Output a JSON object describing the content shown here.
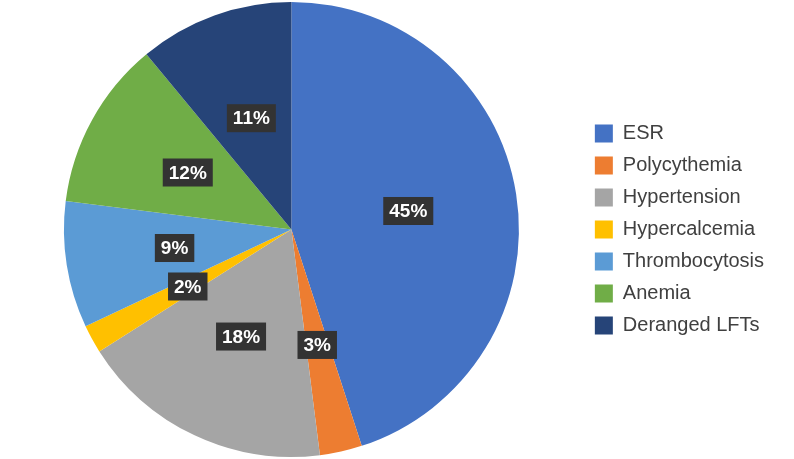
{
  "chart_data": {
    "type": "pie",
    "categories": [
      "ESR",
      "Polycythemia",
      "Hypertension",
      "Hypercalcemia",
      "Thrombocytosis",
      "Anemia",
      "Deranged LFTs"
    ],
    "values": [
      45,
      3,
      18,
      2,
      9,
      12,
      11
    ],
    "value_labels": [
      "45%",
      "3%",
      "18%",
      "2%",
      "9%",
      "12%",
      "11%"
    ],
    "colors": [
      "#4472c4",
      "#ed7d31",
      "#a5a5a5",
      "#ffc000",
      "#5b9bd5",
      "#70ad47",
      "#264478"
    ],
    "legend": "right",
    "data_labels": true
  }
}
